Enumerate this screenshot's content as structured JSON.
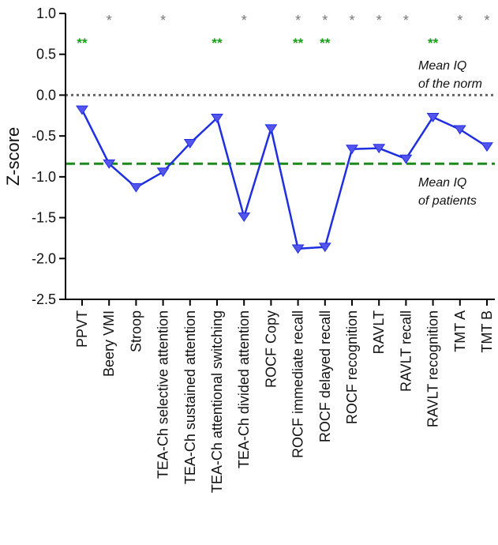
{
  "chart_data": {
    "type": "line",
    "ylabel": "Z-score",
    "ylim": [
      -2.5,
      1.0
    ],
    "yticks": [
      1.0,
      0.5,
      0.0,
      -0.5,
      -1.0,
      -1.5,
      -2.0,
      -2.5
    ],
    "ytick_labels": [
      "1.0",
      "0.5",
      "0.0",
      "-0.5",
      "-1.0",
      "-1.5",
      "-2.0",
      "-2.5"
    ],
    "categories": [
      "PPVT",
      "Beery VMI",
      "Stroop",
      "TEA-Ch selective attention",
      "TEA-Ch sustained attention",
      "TEA-Ch attentional switching",
      "TEA-Ch divided attention",
      "ROCF Copy",
      "ROCF immediate recall",
      "ROCF delayed recall",
      "ROCF recognition",
      "RAVLT",
      "RAVLT recall",
      "RAVLT recognition",
      "TMT A",
      "TMT B"
    ],
    "values": [
      -0.18,
      -0.84,
      -1.13,
      -0.94,
      -0.59,
      -0.28,
      -1.49,
      -0.41,
      -1.88,
      -1.86,
      -0.66,
      -0.65,
      -0.78,
      -0.27,
      -0.42,
      -0.63
    ],
    "series_color": "#1f2fe0",
    "marker_color": "#5555ee",
    "single_star_label": "*",
    "double_star_label": "**",
    "single_star_categories": [
      1,
      3,
      6,
      8,
      9,
      10,
      11,
      12,
      14,
      15
    ],
    "double_star_categories": [
      0,
      5,
      8,
      9,
      13
    ],
    "reference_lines": [
      {
        "value": 0.0,
        "color": "#666666",
        "style": "dotted",
        "label_line1": "Mean  IQ",
        "label_line2": "of the norm"
      },
      {
        "value": -0.84,
        "color": "#1a8a1a",
        "style": "dashed",
        "label_line1": "Mean IQ",
        "label_line2": "of patients"
      }
    ],
    "single_star_color": "#777777",
    "double_star_color": "#1a9e1a"
  }
}
